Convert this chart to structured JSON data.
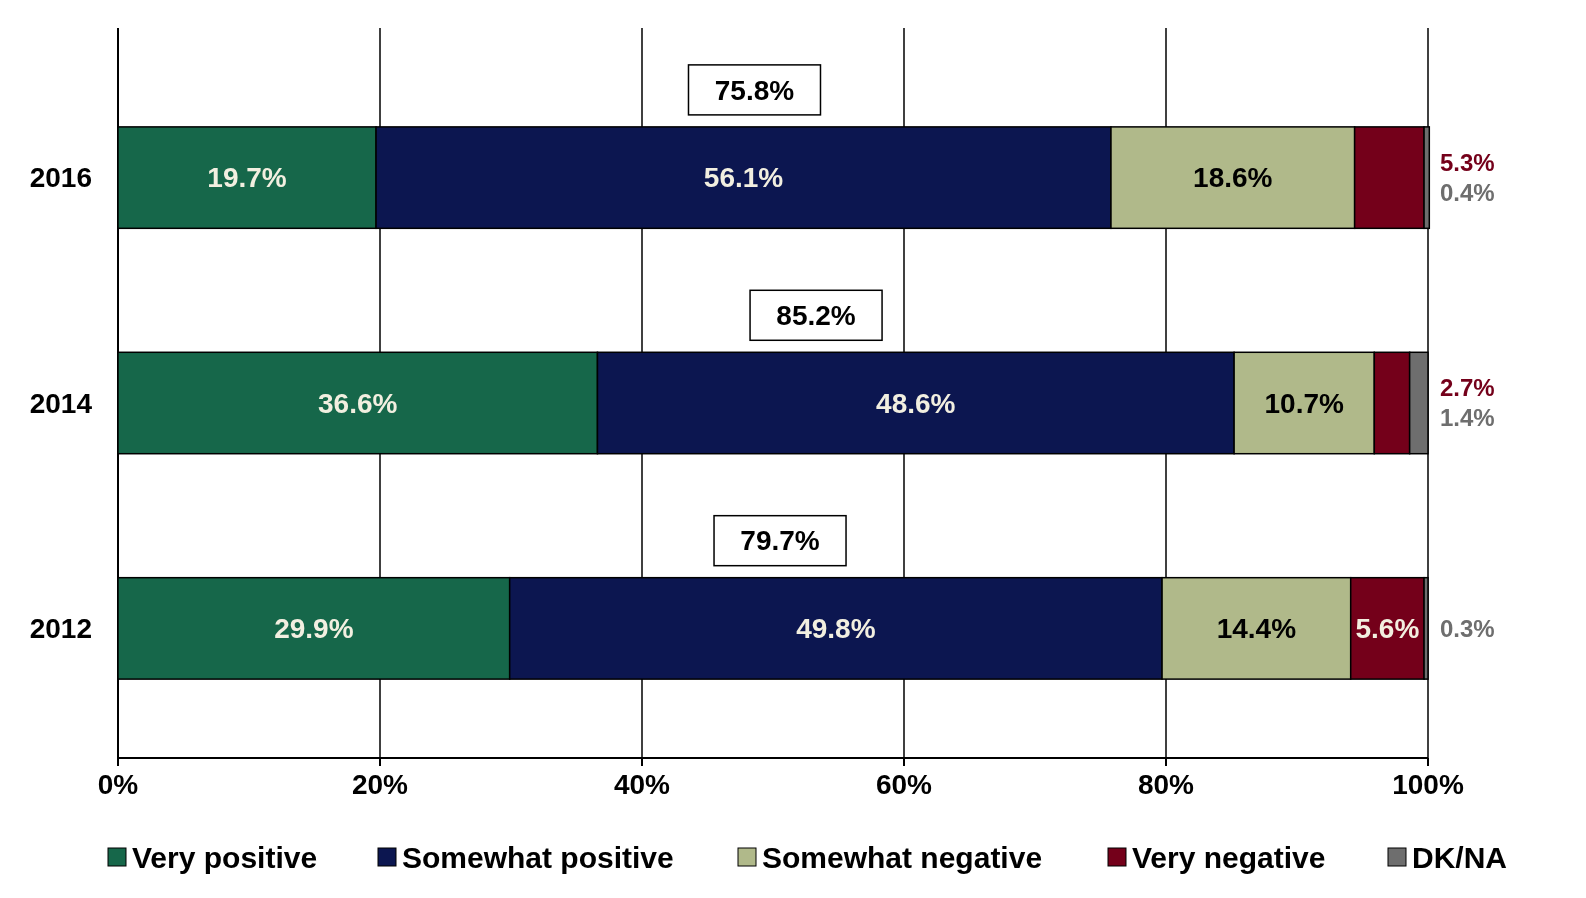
{
  "chart_data": {
    "type": "bar",
    "orientation": "horizontal",
    "stacked": true,
    "categories": [
      "2016",
      "2014",
      "2012"
    ],
    "series": [
      {
        "name": "Very positive",
        "color": "#16674a",
        "values": [
          19.7,
          36.6,
          29.9
        ],
        "value_labels": [
          "19.7%",
          "36.6%",
          "29.9%"
        ]
      },
      {
        "name": "Somewhat positive",
        "color": "#0c1650",
        "values": [
          56.1,
          48.6,
          49.8
        ],
        "value_labels": [
          "56.1%",
          "48.6%",
          "49.8%"
        ]
      },
      {
        "name": "Somewhat negative",
        "color": "#b0b98a",
        "values": [
          18.6,
          10.7,
          14.4
        ],
        "value_labels": [
          "18.6%",
          "10.7%",
          "14.4%"
        ]
      },
      {
        "name": "Very negative",
        "color": "#74001a",
        "values": [
          5.3,
          2.7,
          5.6
        ],
        "value_labels": [
          "5.3%",
          "2.7%",
          "5.6%"
        ]
      },
      {
        "name": "DK/NA",
        "color": "#6e6e6e",
        "values": [
          0.4,
          1.4,
          0.3
        ],
        "value_labels": [
          "0.4%",
          "1.4%",
          "0.3%"
        ]
      }
    ],
    "annotations": [
      "75.8%",
      "85.2%",
      "79.7%"
    ],
    "xlim": [
      0,
      100
    ],
    "xticks": [
      {
        "value": 0,
        "label": "0%"
      },
      {
        "value": 20,
        "label": "20%"
      },
      {
        "value": 40,
        "label": "40%"
      },
      {
        "value": 60,
        "label": "60%"
      },
      {
        "value": 80,
        "label": "80%"
      },
      {
        "value": 100,
        "label": "100%"
      }
    ],
    "grid": "x",
    "legend": "bottom"
  }
}
